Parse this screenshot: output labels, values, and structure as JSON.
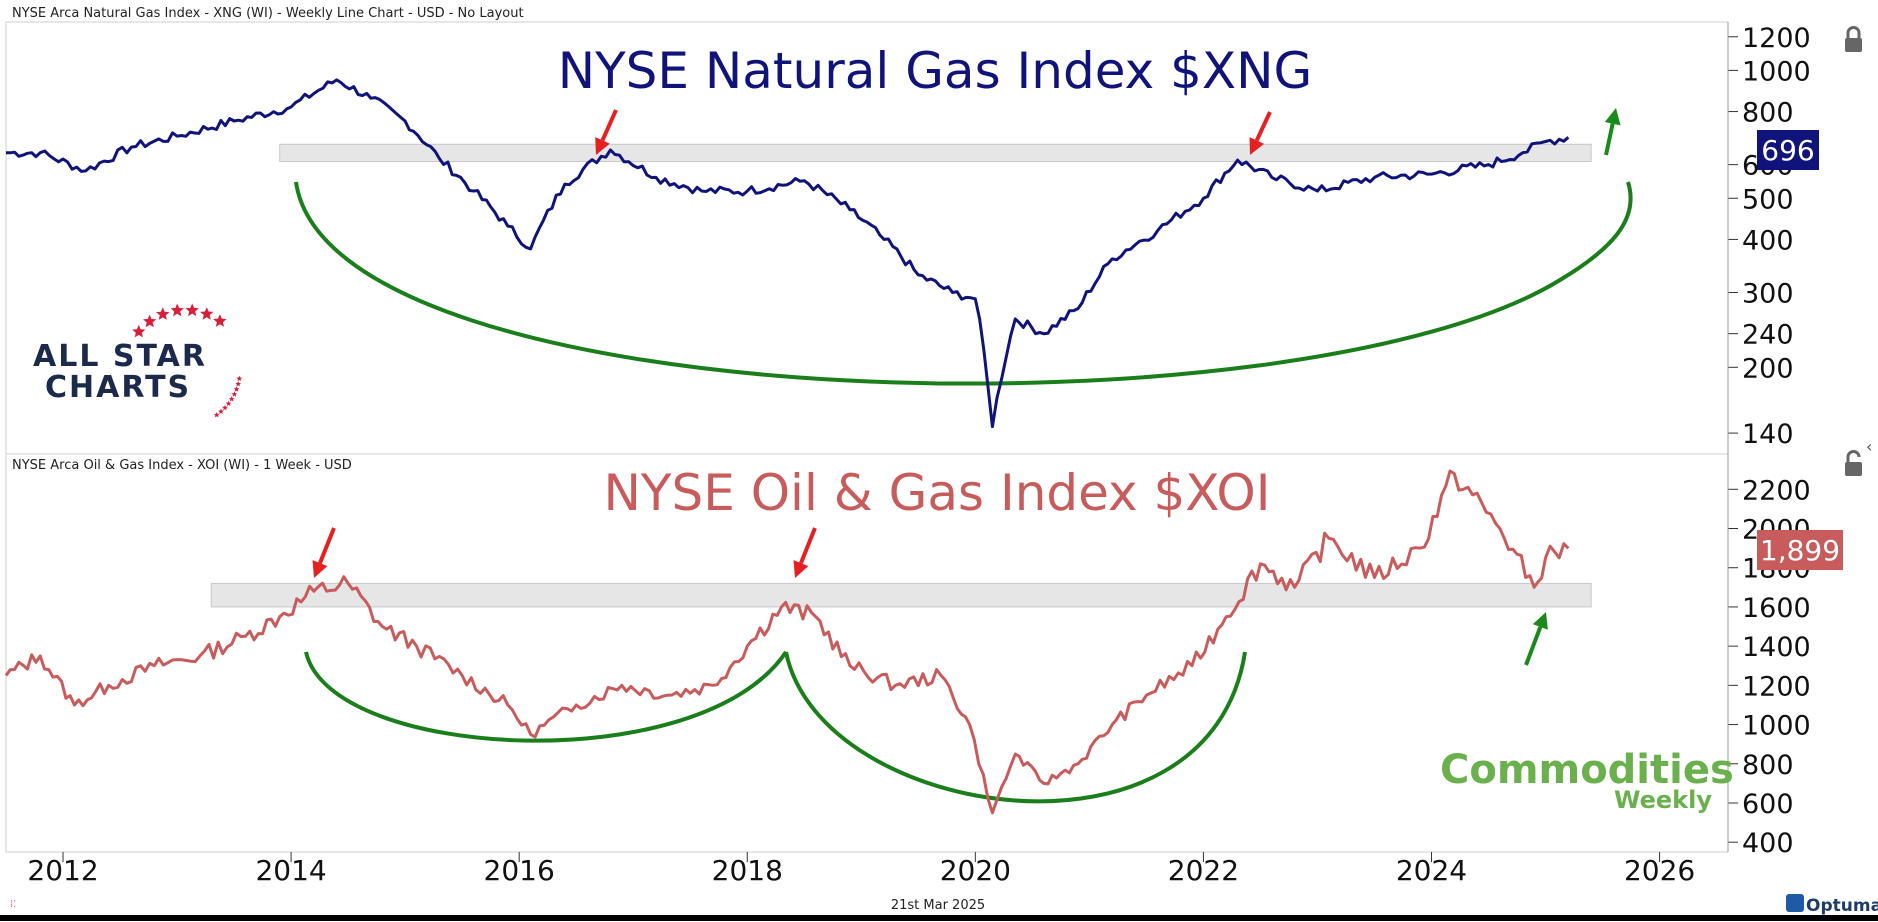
{
  "top_panel": {
    "header": "NYSE Arca Natural Gas Index - XNG (WI) - Weekly Line Chart - USD - No Layout",
    "title": "NYSE Natural Gas Index $XNG",
    "last_value_label": "696"
  },
  "bottom_panel": {
    "header": "NYSE Arca Oil & Gas Index - XOI (WI) - 1 Week - USD",
    "title": "NYSE Oil & Gas Index $XOI",
    "last_value_label": "1,899"
  },
  "footer": {
    "date": "21st Mar 2025",
    "brand": "Optuma"
  },
  "logos": {
    "allstar_line1": "ALL STAR",
    "allstar_line2": "CHARTS",
    "commodities_line1": "Commodities",
    "commodities_line2": "Weekly"
  },
  "colors": {
    "xng_line": "#0f137a",
    "xoi_line": "#c85b5b",
    "arc": "#1a7f1a",
    "arrow_red": "#e52020",
    "arrow_green": "#1a8a1a",
    "band": "#dcdcdc"
  },
  "chart_data": [
    {
      "type": "line",
      "title": "NYSE Natural Gas Index $XNG",
      "scale": "log",
      "xlim": [
        2011.5,
        2026.6
      ],
      "ylim": [
        125,
        1300
      ],
      "yticks": [
        1200,
        1000,
        800,
        600,
        500,
        400,
        300,
        240,
        200,
        140
      ],
      "xticks": [
        2012,
        2014,
        2016,
        2018,
        2020,
        2022,
        2024,
        2026
      ],
      "grid": false,
      "last_value": 696,
      "resistance_band": {
        "low": 610,
        "high": 670,
        "from": 2013.9,
        "to": 2025.4
      },
      "series": [
        {
          "x": [
            2011.5,
            2011.8,
            2012.2,
            2012.6,
            2013.0,
            2013.5,
            2014.0,
            2014.4,
            2014.7,
            2015.0,
            2015.3,
            2015.6,
            2015.9,
            2016.1,
            2016.4,
            2016.8,
            2017.2,
            2017.6,
            2018.0,
            2018.5,
            2018.9,
            2019.2,
            2019.5,
            2019.8,
            2020.0,
            2020.15,
            2020.35,
            2020.6,
            2020.9,
            2021.2,
            2021.6,
            2022.0,
            2022.3,
            2022.6,
            2023.0,
            2023.5,
            2024.0,
            2024.5,
            2024.8,
            2025.0,
            2025.2
          ],
          "y": [
            640,
            640,
            580,
            660,
            700,
            760,
            820,
            950,
            860,
            760,
            620,
            520,
            430,
            380,
            540,
            650,
            560,
            520,
            520,
            550,
            470,
            400,
            330,
            300,
            290,
            145,
            260,
            240,
            275,
            360,
            420,
            500,
            615,
            560,
            520,
            560,
            570,
            600,
            640,
            680,
            696
          ]
        }
      ]
    },
    {
      "type": "line",
      "title": "NYSE Oil & Gas Index $XOI",
      "scale": "linear",
      "xlim": [
        2011.5,
        2026.6
      ],
      "ylim": [
        350,
        2380
      ],
      "yticks": [
        2200,
        2000,
        1800,
        1600,
        1400,
        1200,
        1000,
        800,
        600,
        400
      ],
      "xticks": [
        2012,
        2014,
        2016,
        2018,
        2020,
        2022,
        2024,
        2026
      ],
      "grid": false,
      "last_value": 1899,
      "resistance_band": {
        "low": 1600,
        "high": 1720,
        "from": 2013.3,
        "to": 2025.4
      },
      "series": [
        {
          "x": [
            2011.5,
            2011.8,
            2012.1,
            2012.4,
            2012.8,
            2013.2,
            2013.6,
            2013.9,
            2014.2,
            2014.5,
            2014.8,
            2015.1,
            2015.5,
            2015.9,
            2016.1,
            2016.5,
            2016.9,
            2017.3,
            2017.7,
            2018.0,
            2018.3,
            2018.6,
            2018.9,
            2019.3,
            2019.7,
            2019.95,
            2020.15,
            2020.35,
            2020.6,
            2020.9,
            2021.2,
            2021.5,
            2021.9,
            2022.2,
            2022.5,
            2022.8,
            2023.1,
            2023.5,
            2023.9,
            2024.2,
            2024.6,
            2024.9,
            2025.0,
            2025.2
          ],
          "y": [
            1250,
            1350,
            1100,
            1200,
            1300,
            1350,
            1450,
            1550,
            1680,
            1720,
            1500,
            1400,
            1250,
            1100,
            950,
            1100,
            1200,
            1150,
            1200,
            1400,
            1600,
            1550,
            1300,
            1200,
            1250,
            1000,
            550,
            850,
            700,
            800,
            1000,
            1150,
            1300,
            1550,
            1820,
            1700,
            1950,
            1750,
            1900,
            2280,
            2000,
            1700,
            1850,
            1899
          ]
        }
      ]
    }
  ]
}
